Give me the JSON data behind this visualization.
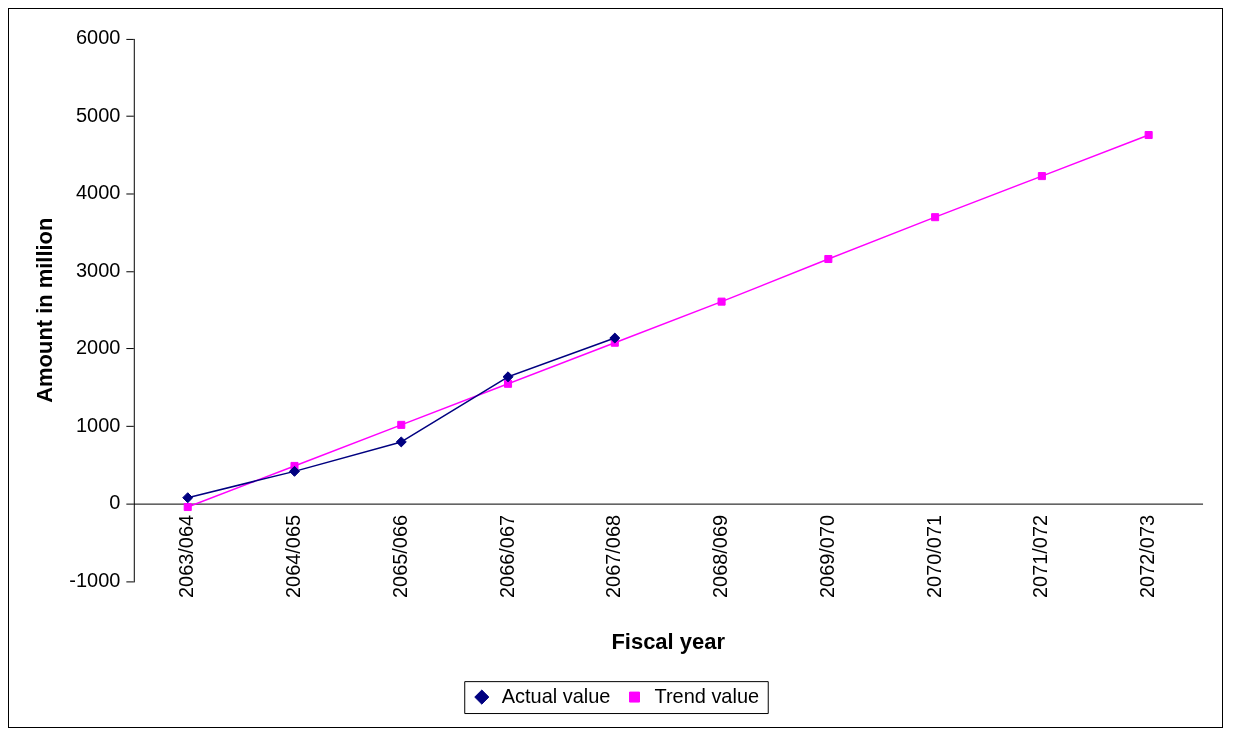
{
  "chart_data": {
    "type": "line",
    "xlabel": "Fiscal year",
    "ylabel": "Amount in million",
    "categories": [
      "2063/064",
      "2064/065",
      "2065/066",
      "2066/067",
      "2067/068",
      "2068/069",
      "2069/070",
      "2070/071",
      "2071/072",
      "2072/073"
    ],
    "series": [
      {
        "name": "Actual value",
        "color": "#000080",
        "marker": "diamond",
        "values": [
          80,
          420,
          800,
          1640,
          2140,
          null,
          null,
          null,
          null,
          null
        ]
      },
      {
        "name": "Trend value",
        "color": "#ff00ff",
        "marker": "square",
        "values": [
          -40,
          490,
          1020,
          1550,
          2080,
          2610,
          3160,
          3700,
          4230,
          4760
        ]
      }
    ],
    "ylim": [
      -1000,
      6000
    ],
    "yticks": [
      -1000,
      0,
      1000,
      2000,
      3000,
      4000,
      5000,
      6000
    ],
    "grid": false,
    "legend": "bottom",
    "line_style": "solid"
  }
}
